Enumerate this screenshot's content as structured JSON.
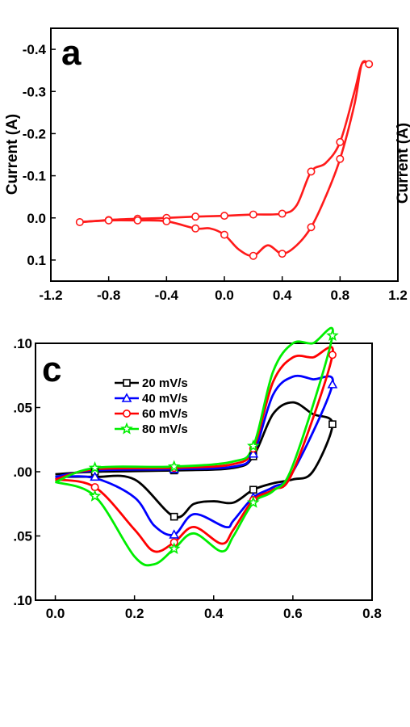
{
  "chart_data": [
    {
      "panel": "a",
      "type": "line",
      "ylabel": "Current (A)",
      "xlim": [
        -1.2,
        1.2
      ],
      "ylim": [
        -0.45,
        0.15
      ],
      "y_inverted": true,
      "x_ticks": [
        "-1.2",
        "-0.8",
        "-0.4",
        "0.0",
        "0.4",
        "0.8",
        "1.2"
      ],
      "x_tick_values": [
        -1.2,
        -0.8,
        -0.4,
        0.0,
        0.4,
        0.8,
        1.2
      ],
      "y_ticks": [
        "-0.4",
        "-0.3",
        "-0.2",
        "-0.1",
        "0.0",
        "0.1"
      ],
      "y_tick_values": [
        -0.4,
        -0.3,
        -0.2,
        -0.1,
        0.0,
        0.1
      ],
      "series": [
        {
          "color": "#ff1a1a",
          "marker": "circle",
          "upper_branch": {
            "x": [
              -1.0,
              -0.8,
              -0.6,
              -0.4,
              -0.2,
              0.0,
              0.2,
              0.4,
              0.5,
              0.6,
              0.7,
              0.8,
              0.9,
              0.95,
              1.0
            ],
            "y": [
              0.01,
              0.005,
              0.002,
              0.0,
              -0.003,
              -0.005,
              -0.008,
              -0.01,
              -0.03,
              -0.11,
              -0.13,
              -0.18,
              -0.3,
              -0.365,
              -0.365
            ]
          },
          "lower_branch": {
            "x": [
              1.0,
              0.95,
              0.9,
              0.8,
              0.7,
              0.6,
              0.5,
              0.4,
              0.3,
              0.2,
              0.1,
              0.0,
              -0.1,
              -0.2,
              -0.4,
              -0.6,
              -0.8,
              -1.0
            ],
            "y": [
              -0.365,
              -0.365,
              -0.27,
              -0.14,
              -0.05,
              0.022,
              0.065,
              0.085,
              0.065,
              0.09,
              0.075,
              0.04,
              0.025,
              0.025,
              0.008,
              0.006,
              0.006,
              0.01
            ]
          },
          "marker_x": [
            -1.0,
            -0.8,
            -0.6,
            -0.4,
            -0.2,
            0.0,
            0.2,
            0.4,
            0.6,
            0.8,
            1.0,
            0.8,
            0.6,
            0.4,
            0.2,
            0.0,
            -0.2,
            -0.4,
            -0.6,
            -0.8
          ],
          "marker_y": [
            0.01,
            0.005,
            0.002,
            0.0,
            -0.003,
            -0.005,
            -0.008,
            -0.01,
            -0.11,
            -0.18,
            -0.365,
            -0.14,
            0.022,
            0.085,
            0.09,
            0.04,
            0.025,
            0.008,
            0.006,
            0.006
          ]
        }
      ]
    },
    {
      "panel": "c",
      "type": "line",
      "xlim": [
        -0.05,
        0.8
      ],
      "ylim": [
        -0.1,
        0.1
      ],
      "x_ticks": [
        "0.0",
        "0.2",
        "0.4",
        "0.6",
        "0.8"
      ],
      "x_tick_values": [
        0.0,
        0.2,
        0.4,
        0.6,
        0.8
      ],
      "y_ticks": [
        ".10",
        ".05",
        ".00",
        ".05",
        ".10"
      ],
      "y_tick_values": [
        0.1,
        0.05,
        0.0,
        -0.05,
        -0.1
      ],
      "legend_position": "top-left",
      "series": [
        {
          "name": "20 mV/s",
          "color": "#000000",
          "marker": "square",
          "forward": {
            "x": [
              0.0,
              0.1,
              0.3,
              0.45,
              0.5,
              0.55,
              0.6,
              0.65,
              0.7
            ],
            "y": [
              -0.002,
              0.0,
              0.001,
              0.003,
              0.012,
              0.045,
              0.054,
              0.045,
              0.037
            ]
          },
          "reverse": {
            "x": [
              0.7,
              0.65,
              0.6,
              0.55,
              0.5,
              0.45,
              0.4,
              0.35,
              0.3,
              0.2,
              0.1,
              0.0
            ],
            "y": [
              0.037,
              0.0,
              -0.006,
              -0.009,
              -0.014,
              -0.024,
              -0.023,
              -0.025,
              -0.035,
              -0.006,
              -0.004,
              -0.004
            ]
          },
          "marker_x": [
            0.1,
            0.3,
            0.5,
            0.7,
            0.5,
            0.3
          ],
          "marker_y": [
            0.0,
            0.001,
            0.012,
            0.037,
            -0.014,
            -0.035
          ]
        },
        {
          "name": "40 mV/s",
          "color": "#0000ff",
          "marker": "triangle",
          "forward": {
            "x": [
              0.0,
              0.1,
              0.3,
              0.45,
              0.5,
              0.55,
              0.6,
              0.65,
              0.7
            ],
            "y": [
              -0.004,
              0.001,
              0.002,
              0.004,
              0.014,
              0.06,
              0.074,
              0.072,
              0.068
            ]
          },
          "reverse": {
            "x": [
              0.7,
              0.6,
              0.55,
              0.5,
              0.45,
              0.43,
              0.35,
              0.3,
              0.25,
              0.2,
              0.1,
              0.0
            ],
            "y": [
              0.068,
              0.0,
              -0.012,
              -0.02,
              -0.038,
              -0.043,
              -0.033,
              -0.049,
              -0.042,
              -0.02,
              -0.005,
              -0.004
            ]
          },
          "marker_x": [
            0.1,
            0.3,
            0.5,
            0.7,
            0.5,
            0.3
          ],
          "marker_y": [
            -0.004,
            0.002,
            0.014,
            0.068,
            -0.02,
            -0.049
          ]
        },
        {
          "name": "60 mV/s",
          "color": "#ff0000",
          "marker": "circle",
          "forward": {
            "x": [
              0.0,
              0.1,
              0.3,
              0.45,
              0.5,
              0.55,
              0.6,
              0.65,
              0.7
            ],
            "y": [
              -0.006,
              0.002,
              0.003,
              0.006,
              0.018,
              0.07,
              0.089,
              0.089,
              0.091
            ]
          },
          "reverse": {
            "x": [
              0.7,
              0.6,
              0.55,
              0.5,
              0.45,
              0.42,
              0.35,
              0.3,
              0.25,
              0.2,
              0.1,
              0.0
            ],
            "y": [
              0.091,
              0.0,
              -0.014,
              -0.022,
              -0.045,
              -0.056,
              -0.043,
              -0.055,
              -0.062,
              -0.045,
              -0.012,
              -0.006
            ]
          },
          "marker_x": [
            0.1,
            0.3,
            0.5,
            0.7,
            0.5,
            0.3
          ],
          "marker_y": [
            -0.012,
            0.003,
            0.018,
            0.091,
            -0.022,
            -0.055
          ]
        },
        {
          "name": "80 mV/s",
          "color": "#00ee00",
          "marker": "star",
          "forward": {
            "x": [
              0.0,
              0.1,
              0.3,
              0.45,
              0.5,
              0.55,
              0.6,
              0.65,
              0.7
            ],
            "y": [
              -0.008,
              0.003,
              0.004,
              0.008,
              0.02,
              0.078,
              0.1,
              0.1,
              0.106
            ]
          },
          "reverse": {
            "x": [
              0.7,
              0.6,
              0.55,
              0.5,
              0.45,
              0.42,
              0.35,
              0.3,
              0.25,
              0.2,
              0.1,
              0.0
            ],
            "y": [
              0.106,
              0.005,
              -0.015,
              -0.024,
              -0.05,
              -0.062,
              -0.048,
              -0.06,
              -0.072,
              -0.066,
              -0.019,
              -0.008
            ]
          },
          "marker_x": [
            0.1,
            0.3,
            0.5,
            0.7,
            0.5,
            0.3,
            0.1
          ],
          "marker_y": [
            0.003,
            0.004,
            0.02,
            0.106,
            -0.024,
            -0.06,
            -0.019
          ]
        }
      ]
    }
  ],
  "panels": {
    "a": {
      "letter": "a",
      "ylabel": "Current (A)"
    },
    "b": {
      "ylabel": "Current (A)"
    },
    "c": {
      "letter": "c"
    }
  },
  "colors": {
    "panel_a_curve": "#ff1a1a",
    "axis": "#000000"
  }
}
